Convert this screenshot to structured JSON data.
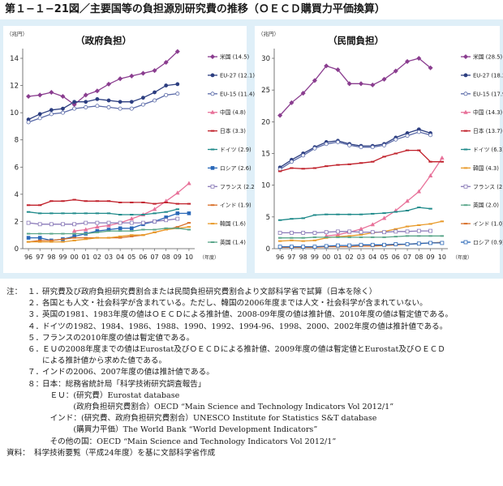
{
  "title": "第１−１−21図／主要国等の負担源別研究費の推移（ＯＥＣＤ購買力平価換算）",
  "chart_data": [
    {
      "type": "line",
      "title": "（政府負担）",
      "ylabel": "（兆円）",
      "xunit": "（年度）",
      "ylim": [
        0,
        14
      ],
      "yticks": [
        0,
        2,
        4,
        6,
        8,
        10,
        12,
        14
      ],
      "x": [
        "96",
        "97",
        "98",
        "99",
        "00",
        "01",
        "02",
        "03",
        "04",
        "05",
        "06",
        "07",
        "08",
        "09",
        "10"
      ],
      "legend_position": "right",
      "series": [
        {
          "name": "米国 (14.5)",
          "color": "#8a3d8f",
          "marker": "diamond-filled",
          "values": [
            11.2,
            11.3,
            11.5,
            11.2,
            10.6,
            11.3,
            11.6,
            12.1,
            12.5,
            12.7,
            12.9,
            13.1,
            13.7,
            14.5,
            null
          ]
        },
        {
          "name": "EU-27 (12.1)",
          "color": "#2c3e80",
          "marker": "circle-filled",
          "values": [
            9.5,
            9.9,
            10.2,
            10.3,
            10.8,
            10.8,
            11.0,
            10.9,
            10.8,
            10.8,
            11.1,
            11.5,
            12.0,
            12.1,
            null
          ]
        },
        {
          "name": "EU-15 (11.4)",
          "color": "#5a6aa8",
          "marker": "circle-open",
          "values": [
            9.3,
            9.6,
            9.9,
            10.0,
            10.3,
            10.4,
            10.5,
            10.4,
            10.3,
            10.3,
            10.6,
            10.9,
            11.3,
            11.4,
            null
          ]
        },
        {
          "name": "中国 (4.8)",
          "color": "#e8729a",
          "marker": "triangle",
          "values": [
            null,
            null,
            null,
            null,
            1.3,
            1.4,
            1.6,
            1.7,
            1.9,
            2.2,
            2.5,
            2.9,
            3.5,
            4.1,
            4.8
          ]
        },
        {
          "name": "日本 (3.3)",
          "color": "#c0202a",
          "marker": "dash",
          "values": [
            3.2,
            3.2,
            3.5,
            3.5,
            3.6,
            3.5,
            3.5,
            3.5,
            3.4,
            3.4,
            3.4,
            3.3,
            3.4,
            3.3,
            3.3
          ]
        },
        {
          "name": "ドイツ (2.9)",
          "color": "#1f8a8a",
          "marker": "dash",
          "values": [
            2.7,
            2.6,
            2.6,
            2.6,
            2.6,
            2.6,
            2.6,
            2.6,
            2.5,
            2.5,
            2.5,
            2.6,
            2.7,
            2.9,
            null
          ]
        },
        {
          "name": "ロシア (2.6)",
          "color": "#2a68b8",
          "marker": "square-filled",
          "values": [
            0.8,
            0.8,
            0.6,
            0.7,
            0.9,
            1.1,
            1.3,
            1.4,
            1.5,
            1.5,
            1.8,
            2.0,
            2.3,
            2.6,
            2.6
          ]
        },
        {
          "name": "フランス (2.2)",
          "color": "#8a7ab8",
          "marker": "square-open",
          "values": [
            1.9,
            1.8,
            1.8,
            1.8,
            1.8,
            1.9,
            1.9,
            1.9,
            1.9,
            1.9,
            1.9,
            2.0,
            2.1,
            2.2,
            null
          ]
        },
        {
          "name": "インド (1.9)",
          "color": "#d8702a",
          "marker": "dash",
          "values": [
            0.5,
            0.6,
            0.6,
            0.7,
            0.8,
            0.8,
            0.8,
            0.8,
            0.8,
            0.9,
            1.0,
            1.2,
            1.4,
            1.6,
            1.9
          ]
        },
        {
          "name": "韓国 (1.6)",
          "color": "#e89a2a",
          "marker": "dash",
          "values": [
            0.5,
            0.5,
            0.5,
            0.5,
            0.6,
            0.7,
            0.8,
            0.8,
            0.9,
            1.0,
            1.0,
            1.2,
            1.4,
            1.5,
            1.6
          ]
        },
        {
          "name": "英国 (1.4)",
          "color": "#5aa68a",
          "marker": "dash",
          "values": [
            1.1,
            1.1,
            1.1,
            1.1,
            1.1,
            1.1,
            1.2,
            1.3,
            1.3,
            1.3,
            1.4,
            1.4,
            1.5,
            1.5,
            1.4
          ]
        }
      ]
    },
    {
      "type": "line",
      "title": "（民間負担）",
      "ylabel": "（兆円）",
      "xunit": "（年度）",
      "ylim": [
        0,
        30
      ],
      "yticks": [
        0,
        5,
        10,
        15,
        20,
        25,
        30
      ],
      "x": [
        "96",
        "97",
        "98",
        "99",
        "00",
        "01",
        "02",
        "03",
        "04",
        "05",
        "06",
        "07",
        "08",
        "09",
        "10"
      ],
      "legend_position": "right",
      "series": [
        {
          "name": "米国 (28.5)",
          "color": "#8a3d8f",
          "marker": "diamond-filled",
          "values": [
            21.0,
            23.0,
            24.5,
            26.5,
            28.8,
            28.2,
            26.0,
            26.0,
            25.8,
            26.7,
            28.0,
            29.5,
            30.0,
            28.5,
            null
          ]
        },
        {
          "name": "EU-27 (18.2)",
          "color": "#2c3e80",
          "marker": "circle-filled",
          "values": [
            12.8,
            14.0,
            15.0,
            16.0,
            16.8,
            17.0,
            16.5,
            16.2,
            16.2,
            16.5,
            17.5,
            18.2,
            18.8,
            18.2,
            null
          ]
        },
        {
          "name": "EU-15 (17.9)",
          "color": "#5a6aa8",
          "marker": "circle-open",
          "values": [
            12.5,
            13.7,
            14.7,
            15.8,
            16.5,
            16.8,
            16.3,
            16.0,
            16.0,
            16.3,
            17.2,
            17.8,
            18.4,
            17.9,
            null
          ]
        },
        {
          "name": "中国 (14.3)",
          "color": "#e8729a",
          "marker": "triangle",
          "values": [
            null,
            null,
            null,
            null,
            2.0,
            2.2,
            2.6,
            3.1,
            3.8,
            4.8,
            6.0,
            7.5,
            9.0,
            11.5,
            14.3
          ]
        },
        {
          "name": "日本 (13.7)",
          "color": "#c0202a",
          "marker": "dash",
          "values": [
            12.2,
            12.7,
            12.6,
            12.7,
            13.0,
            13.2,
            13.3,
            13.5,
            13.7,
            14.5,
            15.0,
            15.5,
            15.5,
            13.7,
            13.7
          ]
        },
        {
          "name": "ドイツ (6.3)",
          "color": "#1f8a8a",
          "marker": "dash",
          "values": [
            4.5,
            4.7,
            4.8,
            5.3,
            5.4,
            5.4,
            5.4,
            5.4,
            5.5,
            5.6,
            5.8,
            6.0,
            6.5,
            6.3,
            null
          ]
        },
        {
          "name": "韓国 (4.3)",
          "color": "#e89a2a",
          "marker": "dash",
          "values": [
            1.2,
            1.3,
            1.2,
            1.3,
            1.7,
            1.9,
            2.0,
            2.2,
            2.5,
            2.7,
            3.1,
            3.5,
            3.7,
            3.9,
            4.3
          ]
        },
        {
          "name": "フランス (2.8)",
          "color": "#8a7ab8",
          "marker": "square-open",
          "values": [
            2.5,
            2.5,
            2.5,
            2.5,
            2.6,
            2.7,
            2.7,
            2.6,
            2.6,
            2.6,
            2.7,
            2.7,
            2.8,
            2.8,
            null
          ]
        },
        {
          "name": "英国 (2.0)",
          "color": "#5aa68a",
          "marker": "dash",
          "values": [
            1.7,
            1.7,
            1.7,
            1.8,
            1.8,
            1.8,
            1.8,
            1.8,
            1.8,
            1.8,
            1.9,
            2.0,
            2.0,
            2.0,
            2.0
          ]
        },
        {
          "name": "インド (1.0)",
          "color": "#d8702a",
          "marker": "dash",
          "values": [
            0.2,
            0.2,
            0.2,
            0.2,
            0.3,
            0.3,
            0.3,
            0.4,
            0.4,
            0.5,
            0.6,
            0.7,
            0.8,
            0.9,
            1.0
          ]
        },
        {
          "name": "ロシア (0.9)",
          "color": "#2a68b8",
          "marker": "square-open",
          "values": [
            0.3,
            0.3,
            0.3,
            0.3,
            0.4,
            0.5,
            0.5,
            0.6,
            0.6,
            0.6,
            0.7,
            0.7,
            0.8,
            0.9,
            0.9
          ]
        }
      ]
    }
  ],
  "notes": [
    {
      "head": "注：",
      "num": "１．",
      "text": "研究費及び政府負担研究費割合または民間負担研究費割合より文部科学省で試算（日本を除く）"
    },
    {
      "head": "",
      "num": "２．",
      "text": "各国とも人文・社会科学が含まれている。ただし、韓国の2006年度までは人文・社会科学が含まれていない。"
    },
    {
      "head": "",
      "num": "３．",
      "text": "英国の1981、1983年度の値はＯＥＣＤによる推計値、2008-09年度の値は推計値、2010年度の値は暫定値である。"
    },
    {
      "head": "",
      "num": "４．",
      "text": "ドイツの1982、1984、1986、1988、1990、1992、1994-96、1998、2000、2002年度の値は推計値である。"
    },
    {
      "head": "",
      "num": "５．",
      "text": "フランスの2010年度の値は暫定値である。"
    },
    {
      "head": "",
      "num": "６．",
      "text": "ＥＵの2008年度までの値はEurostat及びＯＥＣＤによる推計値、2009年度の値は暫定値とEurostat及びＯＥＣＤ"
    },
    {
      "head": "",
      "num": "",
      "text": "による推計値から求めた値である。"
    },
    {
      "head": "",
      "num": "７．",
      "text": "インドの2006、2007年度の値は推計値である。"
    },
    {
      "head": "",
      "num": "８：",
      "text": "日本：総務省統計局「科学技術研究調査報告」"
    },
    {
      "head": "",
      "num": "",
      "text": "　ＥＵ：(研究費）Eurostat database"
    },
    {
      "head": "",
      "num": "",
      "text": "　　　　(政府負担研究費割合）OECD “Main Science and Technology Indicators Vol 2012/1”"
    },
    {
      "head": "",
      "num": "",
      "text": "　インド：(研究費、政府負担研究費割合）UNESCO Institute for Statistics S&T database"
    },
    {
      "head": "",
      "num": "",
      "text": "　　　　(購買力平価）The World Bank “World Development Indicators”"
    },
    {
      "head": "",
      "num": "",
      "text": "　その他の国：OECD “Main Science and Technology Indicators Vol 2012/1”"
    },
    {
      "head": "資料：",
      "num": "",
      "text": "科学技術要覧（平成24年度）を基に文部科学省作成"
    }
  ]
}
